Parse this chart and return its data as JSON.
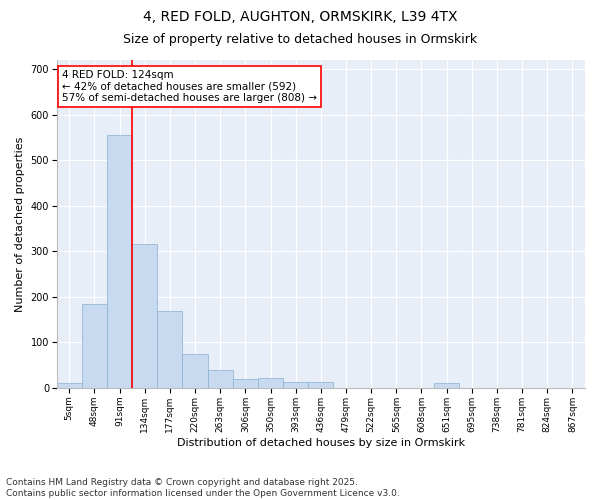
{
  "title1": "4, RED FOLD, AUGHTON, ORMSKIRK, L39 4TX",
  "title2": "Size of property relative to detached houses in Ormskirk",
  "xlabel": "Distribution of detached houses by size in Ormskirk",
  "ylabel": "Number of detached properties",
  "categories": [
    "5sqm",
    "48sqm",
    "91sqm",
    "134sqm",
    "177sqm",
    "220sqm",
    "263sqm",
    "306sqm",
    "350sqm",
    "393sqm",
    "436sqm",
    "479sqm",
    "522sqm",
    "565sqm",
    "608sqm",
    "651sqm",
    "695sqm",
    "738sqm",
    "781sqm",
    "824sqm",
    "867sqm"
  ],
  "values": [
    10,
    185,
    555,
    315,
    170,
    75,
    40,
    20,
    22,
    14,
    12,
    0,
    0,
    0,
    0,
    10,
    0,
    0,
    0,
    0,
    0
  ],
  "bar_color": "#c8daf0",
  "bar_edge_color": "#8ab0d0",
  "vline_x": 3.0,
  "vline_color": "red",
  "annotation_text": "4 RED FOLD: 124sqm\n← 42% of detached houses are smaller (592)\n57% of semi-detached houses are larger (808) →",
  "annotation_box_color": "white",
  "annotation_box_edge": "red",
  "ylim": [
    0,
    720
  ],
  "yticks": [
    0,
    100,
    200,
    300,
    400,
    500,
    600,
    700
  ],
  "footer": "Contains HM Land Registry data © Crown copyright and database right 2025.\nContains public sector information licensed under the Open Government Licence v3.0.",
  "bg_color": "#ffffff",
  "plot_bg_color": "#e8eef8",
  "title_fontsize": 10,
  "subtitle_fontsize": 9,
  "axis_label_fontsize": 8,
  "tick_fontsize": 6.5,
  "footer_fontsize": 6.5,
  "annotation_fontsize": 7.5
}
